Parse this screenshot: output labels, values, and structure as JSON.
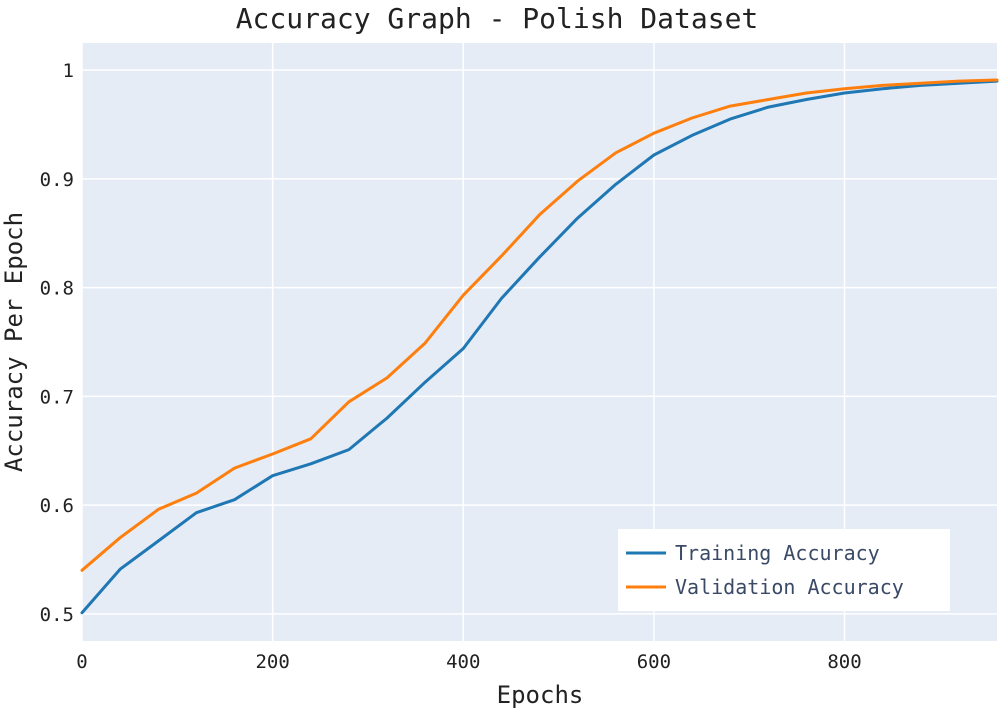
{
  "chart_data": {
    "type": "line",
    "title": "Accuracy Graph - Polish Dataset",
    "xlabel": "Epochs",
    "ylabel": "Accuracy Per Epoch",
    "xlim": [
      0,
      960
    ],
    "ylim": [
      0.475,
      1.025
    ],
    "xticks": [
      0,
      200,
      400,
      600,
      800
    ],
    "yticks": [
      0.5,
      0.6,
      0.7,
      0.8,
      0.9,
      1
    ],
    "ytick_labels": [
      "0.5",
      "0.6",
      "0.7",
      "0.8",
      "0.9",
      "1"
    ],
    "grid": true,
    "legend_position": "bottom-right",
    "x": [
      0,
      40,
      80,
      120,
      160,
      200,
      240,
      280,
      320,
      360,
      400,
      440,
      480,
      520,
      560,
      600,
      640,
      680,
      720,
      760,
      800,
      840,
      880,
      920,
      960
    ],
    "series": [
      {
        "name": "Training Accuracy",
        "color": "#1f77b4",
        "values": [
          0.501,
          0.541,
          0.567,
          0.593,
          0.605,
          0.627,
          0.638,
          0.651,
          0.68,
          0.713,
          0.744,
          0.79,
          0.828,
          0.864,
          0.895,
          0.922,
          0.94,
          0.955,
          0.966,
          0.973,
          0.979,
          0.983,
          0.986,
          0.988,
          0.99
        ]
      },
      {
        "name": "Validation Accuracy",
        "color": "#ff7f0e",
        "values": [
          0.54,
          0.57,
          0.596,
          0.611,
          0.634,
          0.647,
          0.661,
          0.695,
          0.717,
          0.749,
          0.793,
          0.829,
          0.867,
          0.898,
          0.924,
          0.942,
          0.956,
          0.967,
          0.973,
          0.979,
          0.983,
          0.986,
          0.988,
          0.99,
          0.991
        ]
      }
    ]
  },
  "colors": {
    "plot_background": "#e5ecf6",
    "gridline": "#ffffff"
  }
}
